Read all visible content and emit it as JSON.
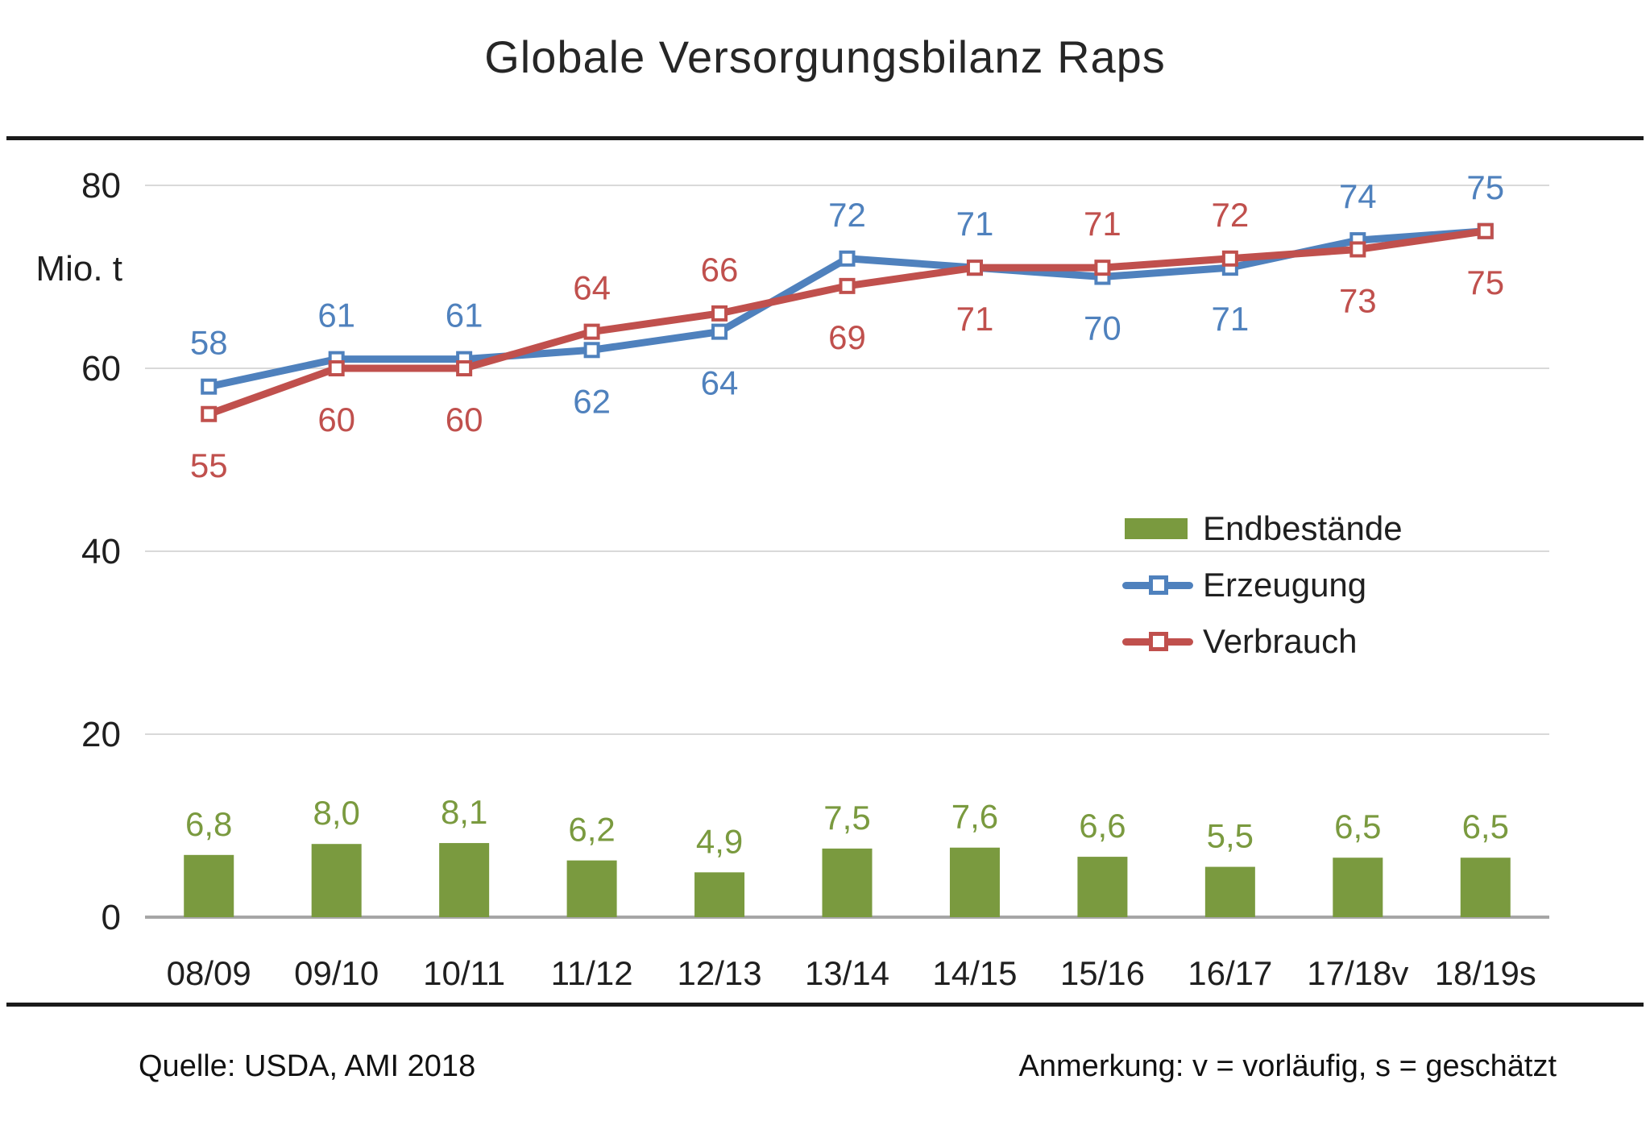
{
  "title": "Globale Versorgungsbilanz Raps",
  "y_axis": {
    "unit_label": "Mio. t",
    "ticks": [
      "80",
      "60",
      "40",
      "20",
      "0"
    ]
  },
  "x_axis": {
    "categories": [
      "08/09",
      "09/10",
      "10/11",
      "11/12",
      "12/13",
      "13/14",
      "14/15",
      "15/16",
      "16/17",
      "17/18v",
      "18/19s"
    ]
  },
  "legend": {
    "items": [
      {
        "label": "Endbestände",
        "swatch": "bar",
        "color": "#7A9A3F"
      },
      {
        "label": "Erzeugung",
        "swatch": "line-marker",
        "color": "#4F81BD"
      },
      {
        "label": "Verbrauch",
        "swatch": "line-marker",
        "color": "#C0504D"
      }
    ]
  },
  "footer": {
    "source": "Quelle: USDA, AMI 2018",
    "note": "Anmerkung: v = vorläufig, s = geschätzt"
  },
  "colors": {
    "grid": "#D9D9D9",
    "axis_line": "#A6A6A6",
    "text": "#1f1f1f"
  },
  "chart_data": {
    "type": "combo-bar-line",
    "title": "Globale Versorgungsbilanz Raps",
    "xlabel": "",
    "ylabel": "Mio. t",
    "ylim": [
      0,
      80
    ],
    "grid": true,
    "gridline_values": [
      20,
      40,
      60,
      80
    ],
    "legend_position": "center-right",
    "categories": [
      "08/09",
      "09/10",
      "10/11",
      "11/12",
      "12/13",
      "13/14",
      "14/15",
      "15/16",
      "16/17",
      "17/18v",
      "18/19s"
    ],
    "series": [
      {
        "name": "Endbestände",
        "type": "bar",
        "color": "#7A9A3F",
        "values": [
          6.8,
          8.0,
          8.1,
          6.2,
          4.9,
          7.5,
          7.6,
          6.6,
          5.5,
          6.5,
          6.5
        ],
        "value_labels": [
          "6,8",
          "8,0",
          "8,1",
          "6,2",
          "4,9",
          "7,5",
          "7,6",
          "6,6",
          "5,5",
          "6,5",
          "6,5"
        ]
      },
      {
        "name": "Erzeugung",
        "type": "line",
        "color": "#4F81BD",
        "values": [
          58,
          61,
          61,
          62,
          64,
          72,
          71,
          70,
          71,
          74,
          75
        ],
        "value_labels": [
          "58",
          "61",
          "61",
          "62",
          "64",
          "72",
          "71",
          "70",
          "71",
          "74",
          "75"
        ],
        "label_positions": [
          "above",
          "above",
          "above",
          "below",
          "below",
          "above",
          "above",
          "below",
          "below",
          "above",
          "above"
        ]
      },
      {
        "name": "Verbrauch",
        "type": "line",
        "color": "#C0504D",
        "values": [
          55,
          60,
          60,
          64,
          66,
          69,
          71,
          71,
          72,
          73,
          75
        ],
        "value_labels": [
          "55",
          "60",
          "60",
          "64",
          "66",
          "69",
          "71",
          "71",
          "72",
          "73",
          "75"
        ],
        "label_positions": [
          "below",
          "below",
          "below",
          "above",
          "above",
          "below",
          "below",
          "above",
          "above",
          "below",
          "below"
        ]
      }
    ]
  }
}
